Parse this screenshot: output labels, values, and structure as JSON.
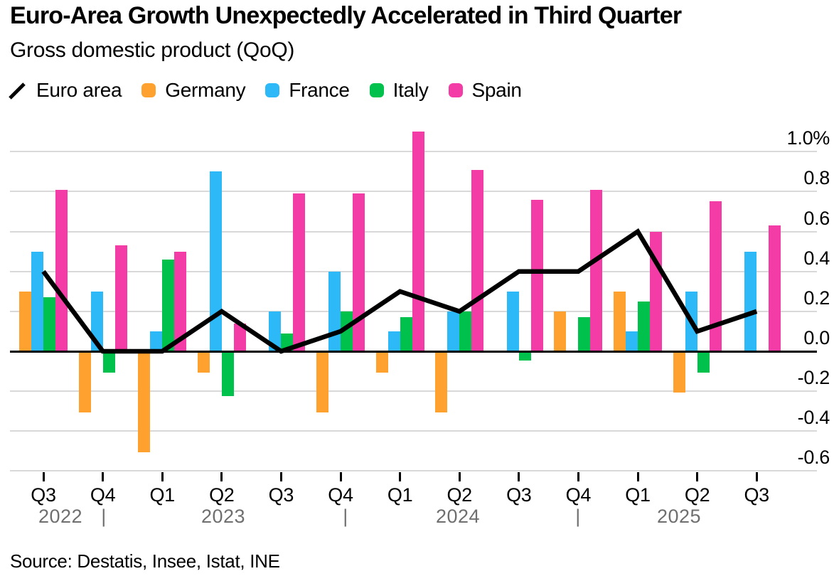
{
  "header": {
    "title": "Euro-Area Growth Unexpectedly Accelerated in Third Quarter",
    "subtitle": "Gross domestic product (QoQ)"
  },
  "legend": [
    {
      "id": "euro-area",
      "label": "Euro area",
      "type": "line",
      "color": "#000000"
    },
    {
      "id": "germany",
      "label": "Germany",
      "type": "bar",
      "color": "#FFA12E"
    },
    {
      "id": "france",
      "label": "France",
      "type": "bar",
      "color": "#2DB8F7"
    },
    {
      "id": "italy",
      "label": "Italy",
      "type": "bar",
      "color": "#00C14B"
    },
    {
      "id": "spain",
      "label": "Spain",
      "type": "bar",
      "color": "#F43CA6"
    }
  ],
  "chart_data": {
    "type": "bar",
    "title": "Euro-Area Growth Unexpectedly Accelerated in Third Quarter",
    "subtitle": "Gross domestic product (QoQ)",
    "unit": "%",
    "categories": [
      "Q3 2022",
      "Q4 2022",
      "Q1 2023",
      "Q2 2023",
      "Q3 2023",
      "Q4 2023",
      "Q1 2024",
      "Q2 2024",
      "Q3 2024",
      "Q4 2024",
      "Q1 2025",
      "Q2 2025",
      "Q3 2025"
    ],
    "x_tick_labels": [
      "Q3",
      "Q4",
      "Q1",
      "Q2",
      "Q3",
      "Q4",
      "Q1",
      "Q2",
      "Q3",
      "Q4",
      "Q1",
      "Q2",
      "Q3"
    ],
    "year_row": [
      "2022",
      "|",
      "2023",
      "|",
      "2024",
      "|",
      "2025"
    ],
    "series": [
      {
        "name": "Euro area",
        "id": "euro-area",
        "type": "line",
        "color": "#000000",
        "values": [
          0.4,
          0.0,
          0.0,
          0.2,
          0.0,
          0.1,
          0.3,
          0.2,
          0.4,
          0.4,
          0.6,
          0.1,
          0.2
        ]
      },
      {
        "name": "Germany",
        "id": "germany",
        "type": "bar",
        "color": "#FFA12E",
        "values": [
          0.3,
          -0.3,
          -0.5,
          -0.1,
          0.0,
          -0.3,
          -0.1,
          -0.3,
          0.0,
          0.2,
          0.3,
          -0.2,
          0.0
        ]
      },
      {
        "name": "France",
        "id": "france",
        "type": "bar",
        "color": "#2DB8F7",
        "values": [
          0.5,
          0.3,
          0.1,
          0.9,
          0.2,
          0.4,
          0.1,
          0.2,
          0.3,
          0.0,
          0.1,
          0.3,
          0.5
        ]
      },
      {
        "name": "Italy",
        "id": "italy",
        "type": "bar",
        "color": "#00C14B",
        "values": [
          0.27,
          -0.1,
          0.46,
          -0.22,
          0.09,
          0.2,
          0.17,
          0.2,
          -0.04,
          0.17,
          0.25,
          -0.1,
          0.0
        ]
      },
      {
        "name": "Spain",
        "id": "spain",
        "type": "bar",
        "color": "#F43CA6",
        "values": [
          0.81,
          0.53,
          0.5,
          0.14,
          0.79,
          0.79,
          1.1,
          0.91,
          0.76,
          0.81,
          0.6,
          0.75,
          0.63
        ]
      }
    ],
    "y_tick_labels": [
      "1.0%",
      "0.8",
      "0.6",
      "0.4",
      "0.2",
      "0.0",
      "-0.2",
      "-0.4",
      "-0.6"
    ],
    "y_tick_values": [
      1.0,
      0.8,
      0.6,
      0.4,
      0.2,
      0.0,
      -0.2,
      -0.4,
      -0.6
    ],
    "ylim": [
      -0.7,
      1.15
    ],
    "grid": true,
    "legend_position": "top",
    "xlabel": "",
    "ylabel": ""
  },
  "footer": {
    "source": "Source: Destatis, Insee, Istat, INE"
  }
}
